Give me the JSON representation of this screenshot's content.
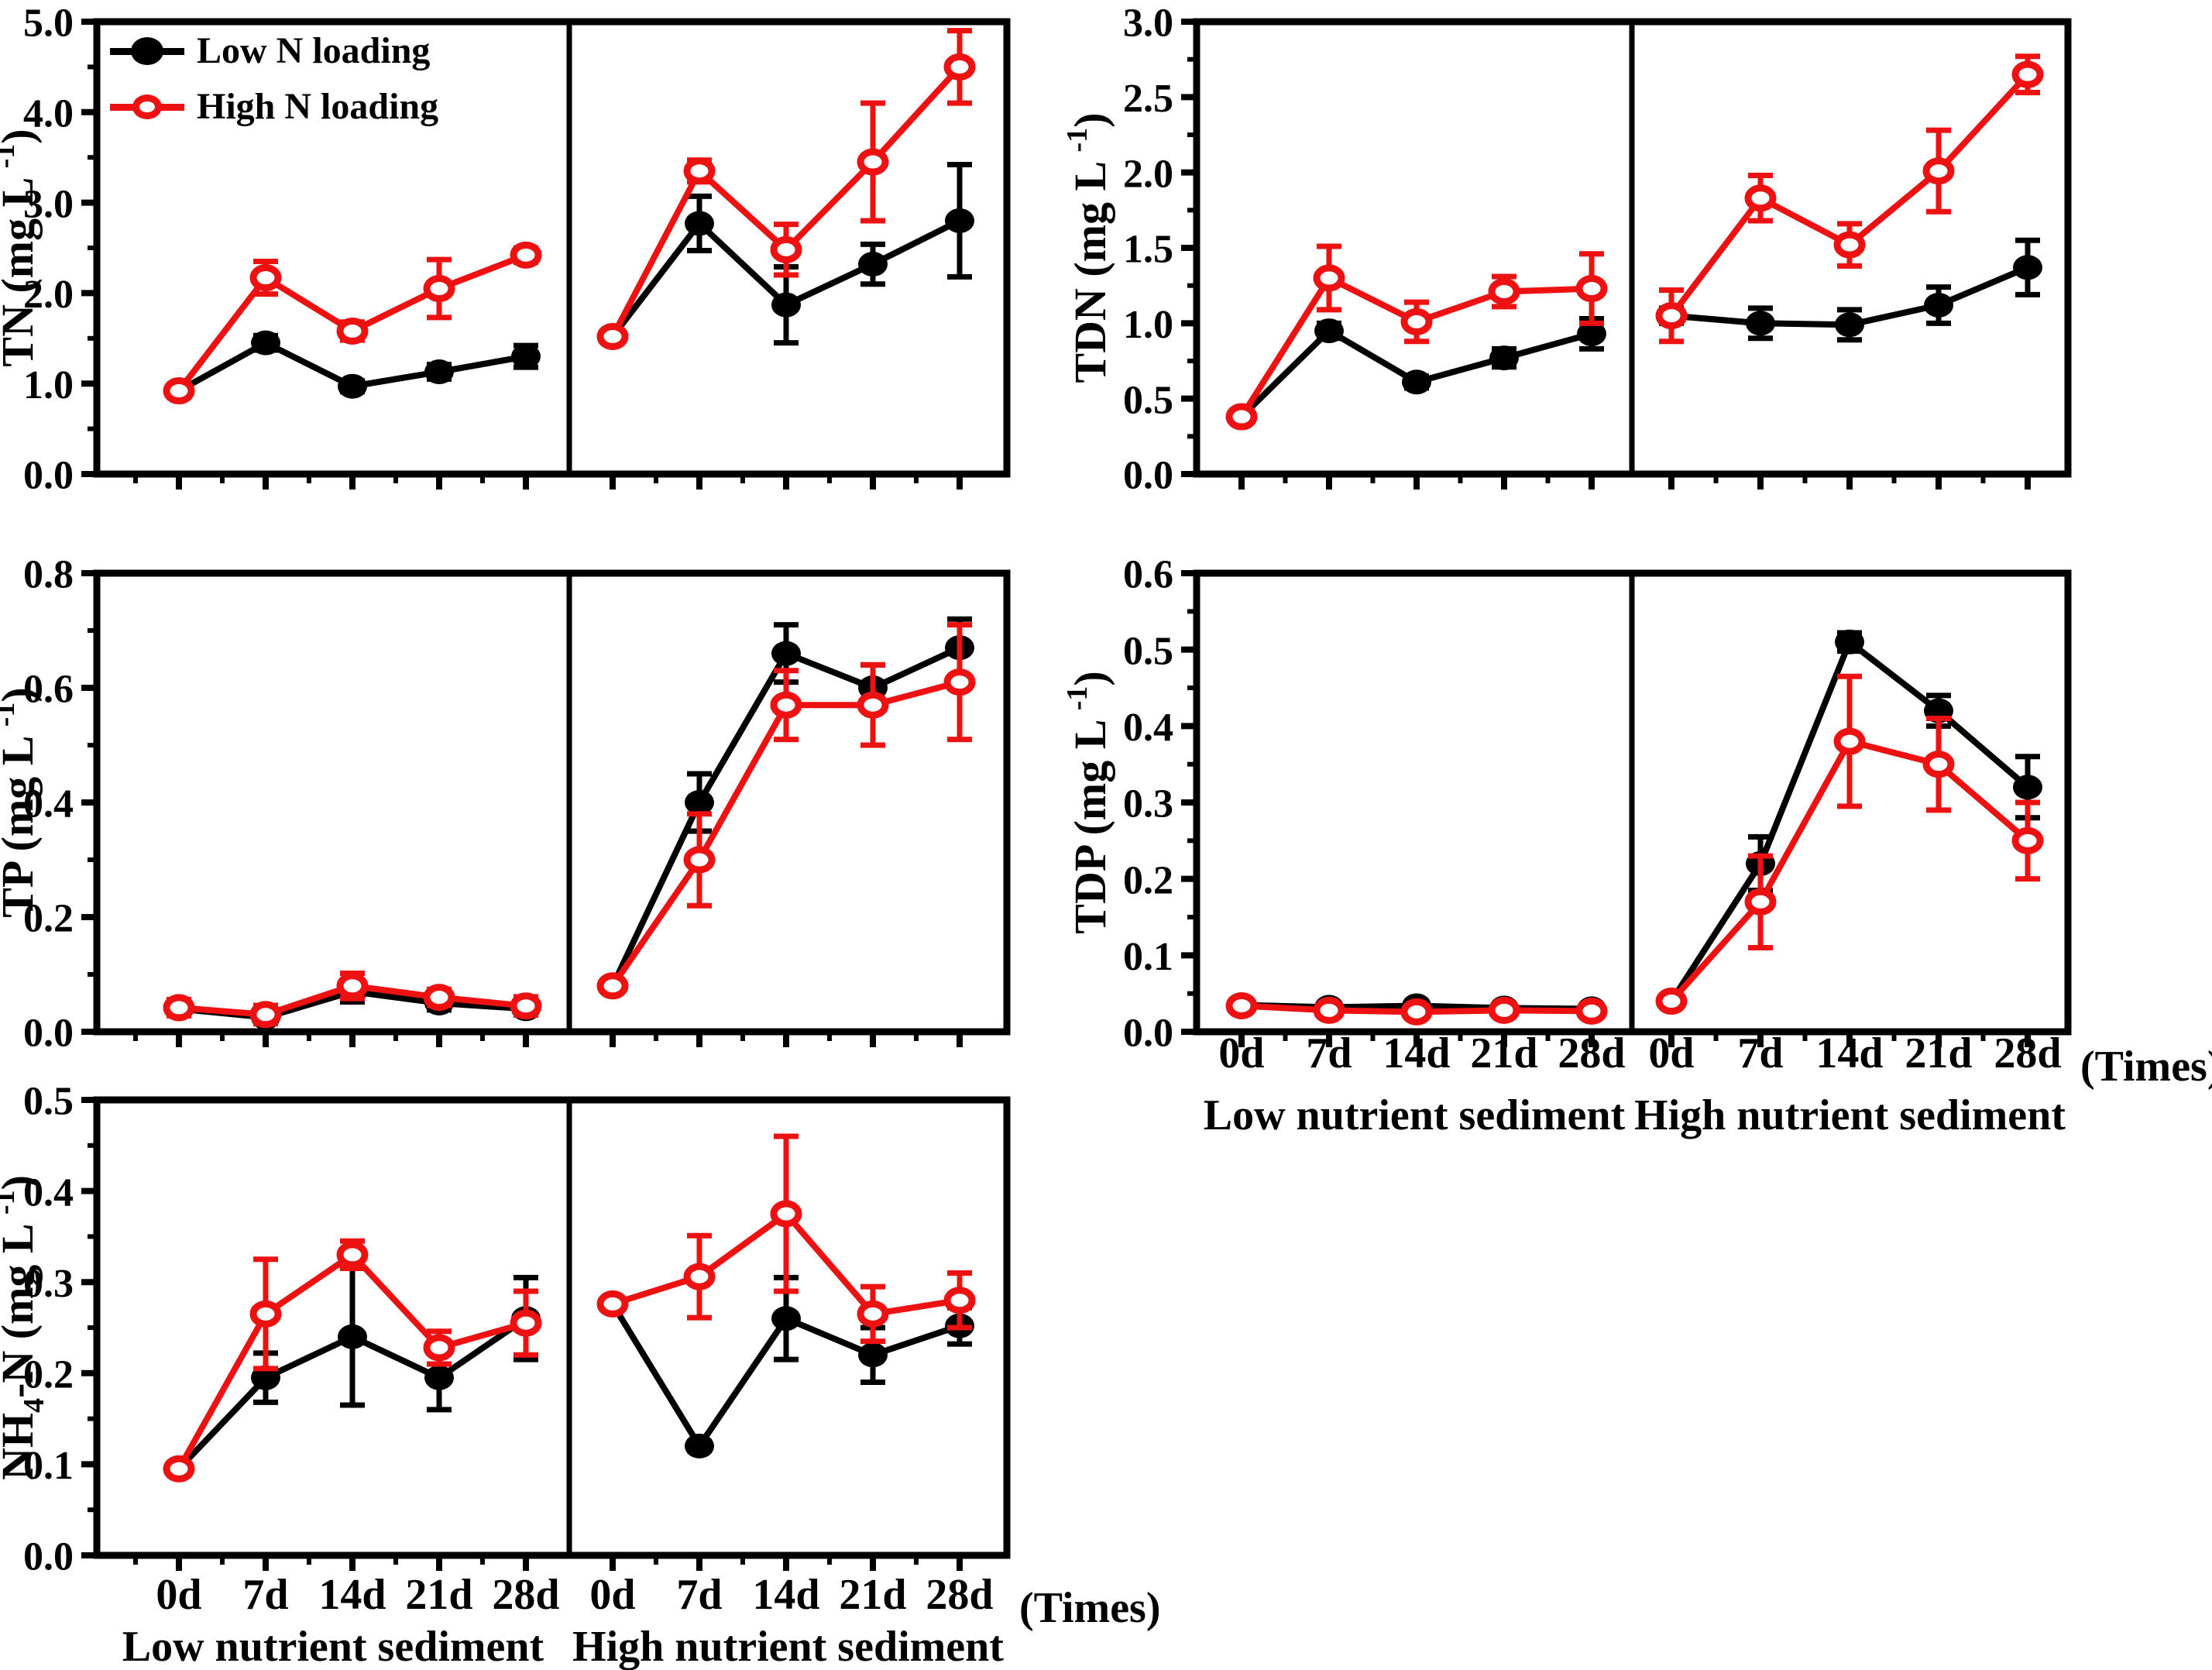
{
  "figure": {
    "background": "#ffffff",
    "colors": {
      "low_n_loading": "#000000",
      "high_n_loading": "#ee1112",
      "frame": "#000000"
    },
    "legend": {
      "items": [
        {
          "label": "Low N loading",
          "marker": "filled-black-circle-icon"
        },
        {
          "label": "High N loading",
          "marker": "open-red-circle-icon"
        }
      ]
    },
    "x_tick_labels": [
      "0d",
      "7d",
      "14d",
      "21d",
      "28d"
    ],
    "times_label": "(Times)",
    "panel_captions": [
      "Low nutrient sediment",
      "High nutrient sediment"
    ]
  },
  "chart_data": [
    {
      "id": "tn",
      "type": "line",
      "title": "TN",
      "ylabel_parts": [
        {
          "t": "TN (mg L "
        },
        {
          "t": "-1",
          "sup": true
        },
        {
          "t": ")"
        }
      ],
      "ylim": [
        0,
        5
      ],
      "y_major": 1.0,
      "y_minor": 0.5,
      "x": [
        "0d",
        "7d",
        "14d",
        "21d",
        "28d"
      ],
      "legend": true,
      "grid": false,
      "panels": [
        {
          "caption": "Low nutrient sediment",
          "series": [
            {
              "name": "Low N loading",
              "color": "#000000",
              "marker": "filled",
              "values": [
                0.92,
                1.45,
                0.97,
                1.13,
                1.3
              ],
              "errors": [
                0.05,
                0.08,
                0.06,
                0.08,
                0.12
              ]
            },
            {
              "name": "High N loading",
              "color": "#ee1112",
              "marker": "open",
              "values": [
                0.92,
                2.17,
                1.58,
                2.05,
                2.42
              ],
              "errors": [
                0.07,
                0.18,
                0.1,
                0.32,
                0.08
              ]
            }
          ]
        },
        {
          "caption": "High nutrient sediment",
          "series": [
            {
              "name": "Low N loading",
              "color": "#000000",
              "marker": "filled",
              "values": [
                1.52,
                2.77,
                1.87,
                2.32,
                2.8
              ],
              "errors": [
                0.05,
                0.3,
                0.42,
                0.22,
                0.62
              ]
            },
            {
              "name": "High N loading",
              "color": "#ee1112",
              "marker": "open",
              "values": [
                1.52,
                3.35,
                2.48,
                3.45,
                4.5
              ],
              "errors": [
                0.05,
                0.12,
                0.28,
                0.65,
                0.4
              ]
            }
          ]
        }
      ]
    },
    {
      "id": "tdn",
      "type": "line",
      "title": "TDN",
      "ylabel_parts": [
        {
          "t": "TDN (mg L "
        },
        {
          "t": "-1",
          "sup": true
        },
        {
          "t": ")"
        }
      ],
      "ylim": [
        0,
        3
      ],
      "y_major": 0.5,
      "y_minor": 0.25,
      "x": [
        "0d",
        "7d",
        "14d",
        "21d",
        "28d"
      ],
      "legend": false,
      "grid": false,
      "panels": [
        {
          "caption": "Low nutrient sediment",
          "series": [
            {
              "name": "Low N loading",
              "color": "#000000",
              "marker": "filled",
              "values": [
                0.38,
                0.95,
                0.61,
                0.77,
                0.93
              ],
              "errors": [
                0.03,
                0.05,
                0.04,
                0.06,
                0.1
              ]
            },
            {
              "name": "High N loading",
              "color": "#ee1112",
              "marker": "open",
              "values": [
                0.38,
                1.3,
                1.01,
                1.21,
                1.23
              ],
              "errors": [
                0.04,
                0.21,
                0.13,
                0.1,
                0.23
              ]
            }
          ]
        },
        {
          "caption": "High nutrient sediment",
          "series": [
            {
              "name": "Low N loading",
              "color": "#000000",
              "marker": "filled",
              "values": [
                1.05,
                1.0,
                0.99,
                1.12,
                1.37
              ],
              "errors": [
                0.05,
                0.1,
                0.1,
                0.12,
                0.18
              ]
            },
            {
              "name": "High N loading",
              "color": "#ee1112",
              "marker": "open",
              "values": [
                1.05,
                1.83,
                1.52,
                2.01,
                2.65
              ],
              "errors": [
                0.17,
                0.15,
                0.14,
                0.27,
                0.12
              ]
            }
          ]
        }
      ]
    },
    {
      "id": "tp",
      "type": "line",
      "title": "TP",
      "ylabel_parts": [
        {
          "t": "TP (mg L "
        },
        {
          "t": "-1",
          "sup": true
        },
        {
          "t": ")"
        }
      ],
      "ylim": [
        0,
        0.8
      ],
      "y_major": 0.2,
      "y_minor": 0.1,
      "x": [
        "0d",
        "7d",
        "14d",
        "21d",
        "28d"
      ],
      "legend": false,
      "grid": false,
      "panels": [
        {
          "caption": "Low nutrient sediment",
          "series": [
            {
              "name": "Low N loading",
              "color": "#000000",
              "marker": "filled",
              "values": [
                0.04,
                0.025,
                0.07,
                0.05,
                0.04
              ],
              "errors": [
                0.01,
                0.01,
                0.018,
                0.012,
                0.008
              ]
            },
            {
              "name": "High N loading",
              "color": "#ee1112",
              "marker": "open",
              "values": [
                0.042,
                0.03,
                0.08,
                0.06,
                0.045
              ],
              "errors": [
                0.014,
                0.016,
                0.022,
                0.014,
                0.016
              ]
            }
          ]
        },
        {
          "caption": "High nutrient sediment",
          "series": [
            {
              "name": "Low N loading",
              "color": "#000000",
              "marker": "filled",
              "values": [
                0.08,
                0.4,
                0.66,
                0.6,
                0.67
              ],
              "errors": [
                0.01,
                0.05,
                0.05,
                0.04,
                0.05
              ]
            },
            {
              "name": "High N loading",
              "color": "#ee1112",
              "marker": "open",
              "values": [
                0.08,
                0.3,
                0.57,
                0.57,
                0.61
              ],
              "errors": [
                0.01,
                0.08,
                0.06,
                0.07,
                0.1
              ]
            }
          ]
        }
      ]
    },
    {
      "id": "tdp",
      "type": "line",
      "title": "TDP",
      "ylabel_parts": [
        {
          "t": "TDP (mg L "
        },
        {
          "t": "-1",
          "sup": true
        },
        {
          "t": ")"
        }
      ],
      "ylim": [
        0,
        0.6
      ],
      "y_major": 0.1,
      "y_minor": 0.05,
      "x": [
        "0d",
        "7d",
        "14d",
        "21d",
        "28d"
      ],
      "legend": false,
      "grid": false,
      "show_x_labels": true,
      "show_captions": true,
      "show_times": true,
      "panels": [
        {
          "caption": "Low nutrient sediment",
          "series": [
            {
              "name": "Low N loading",
              "color": "#000000",
              "marker": "filled",
              "values": [
                0.035,
                0.032,
                0.034,
                0.031,
                0.03
              ],
              "errors": [
                0.005,
                0.005,
                0.006,
                0.005,
                0.005
              ]
            },
            {
              "name": "High N loading",
              "color": "#ee1112",
              "marker": "open",
              "values": [
                0.034,
                0.028,
                0.026,
                0.028,
                0.027
              ],
              "errors": [
                0.006,
                0.007,
                0.007,
                0.006,
                0.006
              ]
            }
          ]
        },
        {
          "caption": "High nutrient sediment",
          "series": [
            {
              "name": "Low N loading",
              "color": "#000000",
              "marker": "filled",
              "values": [
                0.04,
                0.22,
                0.51,
                0.42,
                0.32
              ],
              "errors": [
                0.005,
                0.035,
                0.012,
                0.02,
                0.04
              ]
            },
            {
              "name": "High N loading",
              "color": "#ee1112",
              "marker": "open",
              "values": [
                0.04,
                0.17,
                0.38,
                0.35,
                0.25
              ],
              "errors": [
                0.006,
                0.06,
                0.085,
                0.06,
                0.05
              ]
            }
          ]
        }
      ]
    },
    {
      "id": "nh4",
      "type": "line",
      "title": "NH4-N",
      "ylabel_parts": [
        {
          "t": "NH"
        },
        {
          "t": "4",
          "sub": true
        },
        {
          "t": "-N (mg L "
        },
        {
          "t": "-1",
          "sup": true
        },
        {
          "t": ")"
        }
      ],
      "ylim": [
        0,
        0.5
      ],
      "y_major": 0.1,
      "y_minor": 0.05,
      "x": [
        "0d",
        "7d",
        "14d",
        "21d",
        "28d"
      ],
      "legend": false,
      "grid": false,
      "show_x_labels": true,
      "show_captions": true,
      "show_times": true,
      "panels": [
        {
          "caption": "Low nutrient sediment",
          "series": [
            {
              "name": "Low N loading",
              "color": "#000000",
              "marker": "filled",
              "values": [
                0.095,
                0.195,
                0.24,
                0.195,
                0.26
              ],
              "errors": [
                0.006,
                0.027,
                0.075,
                0.035,
                0.045
              ]
            },
            {
              "name": "High N loading",
              "color": "#ee1112",
              "marker": "open",
              "values": [
                0.095,
                0.265,
                0.33,
                0.228,
                0.255
              ],
              "errors": [
                0.006,
                0.06,
                0.015,
                0.018,
                0.035
              ]
            }
          ]
        },
        {
          "caption": "High nutrient sediment",
          "series": [
            {
              "name": "Low N loading",
              "color": "#000000",
              "marker": "filled",
              "values": [
                0.276,
                0.12,
                0.26,
                0.22,
                0.252
              ],
              "errors": [
                0.005,
                0.005,
                0.045,
                0.03,
                0.02
              ]
            },
            {
              "name": "High N loading",
              "color": "#ee1112",
              "marker": "open",
              "values": [
                0.276,
                0.306,
                0.375,
                0.265,
                0.28
              ],
              "errors": [
                0.005,
                0.045,
                0.085,
                0.03,
                0.03
              ]
            }
          ]
        }
      ]
    }
  ]
}
